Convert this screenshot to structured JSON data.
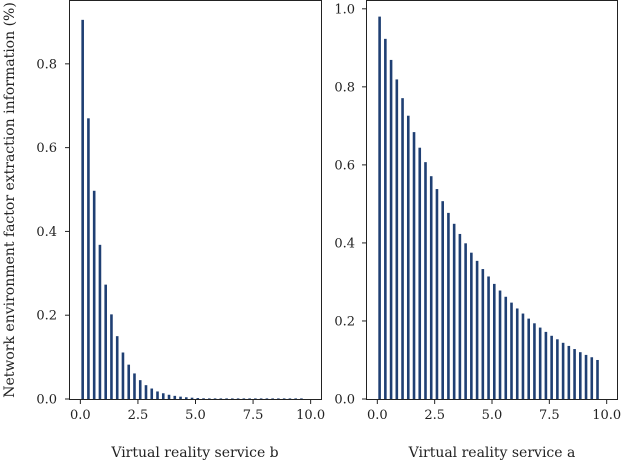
{
  "chart_data": [
    {
      "type": "bar",
      "panel": "left",
      "title": "",
      "xlabel": "Virtual reality service b",
      "ylabel": "Network environment factor extraction information (%)",
      "xlim": [
        -0.45,
        10.45
      ],
      "ylim": [
        0,
        0.95
      ],
      "xticks": [
        0,
        2.5,
        5,
        7.5,
        10
      ],
      "xtick_labels": [
        "0.0",
        "2.5",
        "5.0",
        "7.5",
        "10.0"
      ],
      "yticks": [
        0,
        0.2,
        0.4,
        0.6,
        0.8
      ],
      "ytick_labels": [
        "0.0",
        "0.2",
        "0.4",
        "0.6",
        "0.8"
      ],
      "x": [
        0.1,
        0.35,
        0.6,
        0.85,
        1.1,
        1.35,
        1.6,
        1.85,
        2.1,
        2.35,
        2.6,
        2.85,
        3.1,
        3.35,
        3.6,
        3.85,
        4.1,
        4.35,
        4.6,
        4.85,
        5.1,
        5.35,
        5.6,
        5.85,
        6.1,
        6.35,
        6.6,
        6.85,
        7.1,
        7.35,
        7.6,
        7.85,
        8.1,
        8.35,
        8.6,
        8.85,
        9.1,
        9.35,
        9.6
      ],
      "values": [
        0.905,
        0.67,
        0.497,
        0.368,
        0.273,
        0.202,
        0.15,
        0.111,
        0.082,
        0.061,
        0.045,
        0.033,
        0.025,
        0.018,
        0.0137,
        0.0101,
        0.0075,
        0.0056,
        0.0041,
        0.0031,
        0.0023,
        0.0017,
        0.0012,
        0.0009,
        0.0007,
        0.0005,
        0.0004,
        0.0003,
        0.0002,
        0.00015,
        0.0001,
        8e-05,
        6e-05,
        4e-05,
        3e-05,
        2e-05,
        2e-05,
        1e-05,
        1e-05
      ],
      "grid": false,
      "color": "#1f3f73"
    },
    {
      "type": "bar",
      "panel": "right",
      "title": "",
      "xlabel": "Virtual reality service a",
      "ylabel": "",
      "xlim": [
        -0.45,
        10.45
      ],
      "ylim": [
        0,
        1.02
      ],
      "xticks": [
        0,
        2.5,
        5,
        7.5,
        10
      ],
      "xtick_labels": [
        "0.0",
        "2.5",
        "5.0",
        "7.5",
        "10.0"
      ],
      "yticks": [
        0,
        0.2,
        0.4,
        0.6,
        0.8,
        1.0
      ],
      "ytick_labels": [
        "0.0",
        "0.2",
        "0.4",
        "0.6",
        "0.8",
        "1.0"
      ],
      "x": [
        0.1,
        0.35,
        0.6,
        0.85,
        1.1,
        1.35,
        1.6,
        1.85,
        2.1,
        2.35,
        2.6,
        2.85,
        3.1,
        3.35,
        3.6,
        3.85,
        4.1,
        4.35,
        4.6,
        4.85,
        5.1,
        5.35,
        5.6,
        5.85,
        6.1,
        6.35,
        6.6,
        6.85,
        7.1,
        7.35,
        7.6,
        7.85,
        8.1,
        8.35,
        8.6,
        8.85,
        9.1,
        9.35,
        9.6
      ],
      "values": [
        0.98,
        0.923,
        0.869,
        0.819,
        0.771,
        0.726,
        0.684,
        0.644,
        0.607,
        0.571,
        0.538,
        0.507,
        0.477,
        0.449,
        0.423,
        0.399,
        0.375,
        0.354,
        0.333,
        0.314,
        0.295,
        0.278,
        0.262,
        0.247,
        0.232,
        0.219,
        0.206,
        0.194,
        0.183,
        0.172,
        0.162,
        0.153,
        0.144,
        0.136,
        0.128,
        0.12,
        0.113,
        0.107,
        0.1
      ],
      "grid": false,
      "color": "#1f3f73"
    }
  ]
}
